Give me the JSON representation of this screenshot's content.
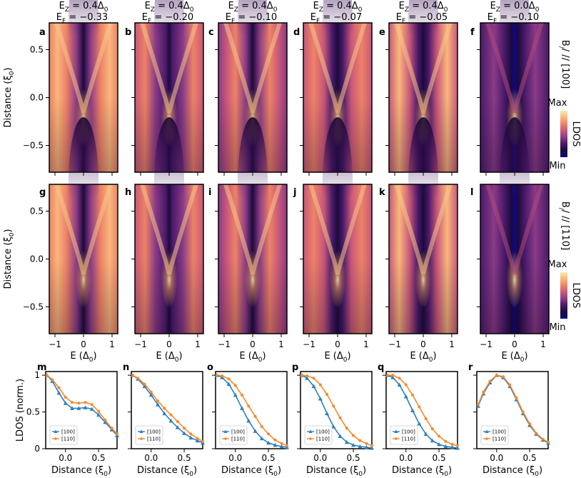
{
  "chart_data": [
    {
      "type": "heatmap",
      "rows": [
        {
          "field_label": "B_// // [100]",
          "colorbar": {
            "label": "LDOS",
            "max_label": "Max",
            "min_label": "Min"
          },
          "panels": [
            {
              "label": "a",
              "title_ez": "E_Z = 0.4Δ_0",
              "title_ef": "E_F = −0.33"
            },
            {
              "label": "b",
              "title_ez": "E_Z = 0.4Δ_0",
              "title_ef": "E_F = −0.20"
            },
            {
              "label": "c",
              "title_ez": "E_Z = 0.4Δ_0",
              "title_ef": "E_F = −0.10"
            },
            {
              "label": "d",
              "title_ez": "E_Z = 0.4Δ_0",
              "title_ef": "E_F = −0.07"
            },
            {
              "label": "e",
              "title_ez": "E_Z = 0.4Δ_0",
              "title_ef": "E_F = −0.05"
            },
            {
              "label": "f",
              "title_ez": "E_Z = 0.0Δ_0",
              "title_ef": "E_F = −0.10"
            }
          ]
        },
        {
          "field_label": "B_// // [110]",
          "colorbar": {
            "label": "LDOS",
            "max_label": "Max",
            "min_label": "Min"
          },
          "panels": [
            {
              "label": "g"
            },
            {
              "label": "h"
            },
            {
              "label": "i"
            },
            {
              "label": "j"
            },
            {
              "label": "k"
            },
            {
              "label": "l"
            }
          ]
        }
      ],
      "xlabel": "E (Δ_0)",
      "ylabel": "Distance (ξ_0)",
      "xlim": [
        -1.2,
        1.2
      ],
      "ylim": [
        -0.78,
        0.78
      ],
      "xticks": [
        "−1",
        "0",
        "1"
      ],
      "yticks": [
        "0.5",
        "0.0",
        "−0.5"
      ],
      "colormap": [
        "#0d0887",
        "#1b0a3a",
        "#4a1a6a",
        "#8a3a86",
        "#c8587a",
        "#ee8266",
        "#f9b77b",
        "#fbe7b5"
      ]
    },
    {
      "type": "line",
      "xlabel": "Distance (ξ_0)",
      "ylabel": "LDOS (norm.)",
      "xlim": [
        -0.3,
        0.78
      ],
      "ylim": [
        0,
        1.05
      ],
      "xticks": [
        "0.0",
        "0.5"
      ],
      "yticks": [
        "1",
        "0.5",
        "0"
      ],
      "legend": [
        "[100]",
        "[110]"
      ],
      "colors": {
        "[100]": "#2f7fb8",
        "[110]": "#f28a2e"
      },
      "panels": [
        {
          "label": "m",
          "series": [
            {
              "name": "[100]",
              "x": [
                -0.28,
                -0.2,
                -0.1,
                0.0,
                0.1,
                0.2,
                0.3,
                0.4,
                0.5,
                0.6,
                0.7,
                0.78
              ],
              "y": [
                1.0,
                0.92,
                0.76,
                0.62,
                0.55,
                0.55,
                0.56,
                0.54,
                0.46,
                0.36,
                0.26,
                0.18
              ]
            },
            {
              "name": "[110]",
              "x": [
                -0.28,
                -0.2,
                -0.1,
                0.0,
                0.1,
                0.2,
                0.3,
                0.4,
                0.5,
                0.6,
                0.7,
                0.78
              ],
              "y": [
                1.0,
                0.94,
                0.83,
                0.7,
                0.63,
                0.62,
                0.63,
                0.6,
                0.51,
                0.39,
                0.28,
                0.2
              ]
            }
          ]
        },
        {
          "label": "n",
          "series": [
            {
              "name": "[100]",
              "x": [
                -0.28,
                -0.2,
                -0.1,
                0.0,
                0.1,
                0.2,
                0.3,
                0.4,
                0.5,
                0.6,
                0.7,
                0.78
              ],
              "y": [
                1.0,
                0.95,
                0.85,
                0.73,
                0.6,
                0.48,
                0.38,
                0.29,
                0.21,
                0.15,
                0.11,
                0.08
              ]
            },
            {
              "name": "[110]",
              "x": [
                -0.28,
                -0.2,
                -0.1,
                0.0,
                0.1,
                0.2,
                0.3,
                0.4,
                0.5,
                0.6,
                0.7,
                0.78
              ],
              "y": [
                1.0,
                0.96,
                0.88,
                0.77,
                0.65,
                0.55,
                0.46,
                0.37,
                0.28,
                0.2,
                0.14,
                0.1
              ]
            }
          ]
        },
        {
          "label": "o",
          "series": [
            {
              "name": "[100]",
              "x": [
                -0.28,
                -0.2,
                -0.1,
                0.0,
                0.1,
                0.2,
                0.3,
                0.4,
                0.5,
                0.6,
                0.7,
                0.78
              ],
              "y": [
                1.0,
                0.97,
                0.88,
                0.73,
                0.55,
                0.38,
                0.24,
                0.14,
                0.08,
                0.05,
                0.03,
                0.02
              ]
            },
            {
              "name": "[110]",
              "x": [
                -0.28,
                -0.2,
                -0.1,
                0.0,
                0.1,
                0.2,
                0.3,
                0.4,
                0.5,
                0.6,
                0.7,
                0.78
              ],
              "y": [
                1.0,
                0.99,
                0.95,
                0.86,
                0.73,
                0.58,
                0.44,
                0.3,
                0.2,
                0.12,
                0.07,
                0.04
              ]
            }
          ]
        },
        {
          "label": "p",
          "series": [
            {
              "name": "[100]",
              "x": [
                -0.28,
                -0.2,
                -0.1,
                0.0,
                0.1,
                0.2,
                0.3,
                0.4,
                0.5,
                0.6,
                0.7,
                0.78
              ],
              "y": [
                1.0,
                0.96,
                0.85,
                0.68,
                0.48,
                0.3,
                0.17,
                0.09,
                0.05,
                0.03,
                0.02,
                0.01
              ]
            },
            {
              "name": "[110]",
              "x": [
                -0.28,
                -0.2,
                -0.1,
                0.0,
                0.1,
                0.2,
                0.3,
                0.4,
                0.5,
                0.6,
                0.7,
                0.78
              ],
              "y": [
                1.0,
                0.99,
                0.96,
                0.87,
                0.74,
                0.58,
                0.42,
                0.28,
                0.18,
                0.11,
                0.07,
                0.04
              ]
            }
          ]
        },
        {
          "label": "q",
          "series": [
            {
              "name": "[100]",
              "x": [
                -0.28,
                -0.2,
                -0.1,
                0.0,
                0.1,
                0.2,
                0.3,
                0.4,
                0.5,
                0.6,
                0.7,
                0.78
              ],
              "y": [
                1.0,
                0.97,
                0.87,
                0.71,
                0.52,
                0.34,
                0.2,
                0.11,
                0.06,
                0.03,
                0.02,
                0.01
              ]
            },
            {
              "name": "[110]",
              "x": [
                -0.28,
                -0.2,
                -0.1,
                0.0,
                0.1,
                0.2,
                0.3,
                0.4,
                0.5,
                0.6,
                0.7,
                0.78
              ],
              "y": [
                1.0,
                1.0,
                0.96,
                0.87,
                0.73,
                0.57,
                0.41,
                0.27,
                0.17,
                0.1,
                0.06,
                0.04
              ]
            }
          ]
        },
        {
          "label": "r",
          "series": [
            {
              "name": "[100]",
              "x": [
                -0.28,
                -0.2,
                -0.1,
                0.0,
                0.1,
                0.2,
                0.3,
                0.4,
                0.5,
                0.6,
                0.7,
                0.78
              ],
              "y": [
                0.58,
                0.75,
                0.9,
                1.0,
                0.97,
                0.85,
                0.67,
                0.48,
                0.32,
                0.2,
                0.12,
                0.08
              ]
            },
            {
              "name": "[110]",
              "x": [
                -0.28,
                -0.2,
                -0.1,
                0.0,
                0.1,
                0.2,
                0.3,
                0.4,
                0.5,
                0.6,
                0.7,
                0.78
              ],
              "y": [
                0.6,
                0.77,
                0.92,
                1.0,
                0.98,
                0.87,
                0.69,
                0.5,
                0.34,
                0.21,
                0.13,
                0.09
              ]
            }
          ]
        }
      ]
    }
  ]
}
